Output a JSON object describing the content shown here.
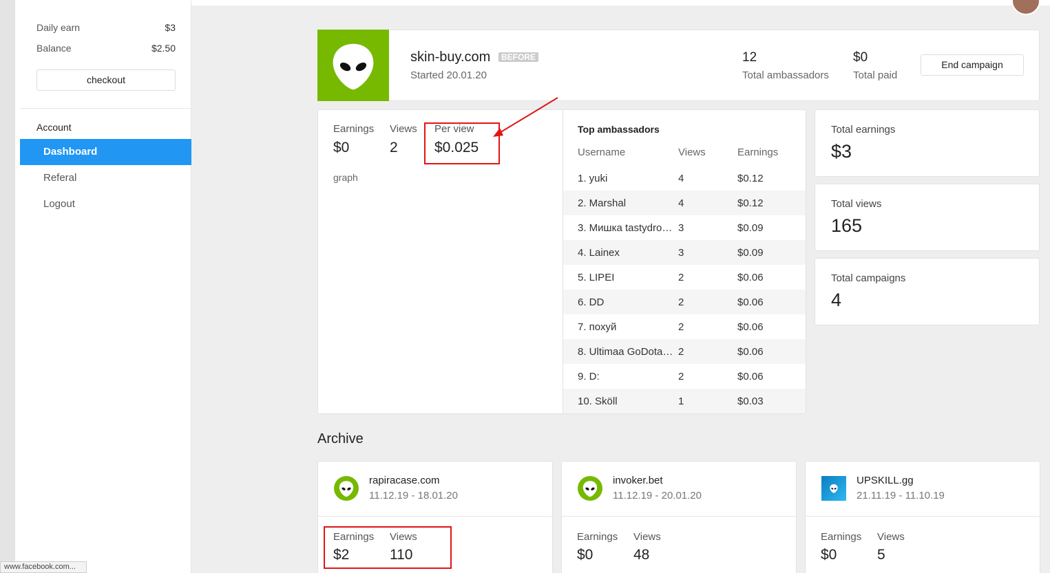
{
  "sidebar": {
    "daily_earn_label": "Daily earn",
    "daily_earn": "$3",
    "balance_label": "Balance",
    "balance": "$2.50",
    "checkout": "checkout",
    "section": "Account",
    "menu": [
      "Dashboard",
      "Referal",
      "Logout"
    ]
  },
  "campaign": {
    "name": "skin-buy.com",
    "badge": "BEFORE",
    "started": "Started 20.01.20",
    "stats": [
      {
        "value": "12",
        "label": "Total ambassadors"
      },
      {
        "value": "$0",
        "label": "Total paid"
      }
    ],
    "end_button": "End campaign"
  },
  "campaign_stats": {
    "items": [
      {
        "label": "Earnings",
        "value": "$0"
      },
      {
        "label": "Views",
        "value": "2"
      },
      {
        "label": "Per view",
        "value": "$0.025"
      }
    ],
    "graph": "graph"
  },
  "top_ambassadors": {
    "title": "Top ambassadors",
    "columns": [
      "Username",
      "Views",
      "Earnings"
    ],
    "rows": [
      [
        "1. yuki",
        "4",
        "$0.12"
      ],
      [
        "2. Marshal",
        "4",
        "$0.12"
      ],
      [
        "3. Мишка tastydro…",
        "3",
        "$0.09"
      ],
      [
        "4. Lainex",
        "3",
        "$0.09"
      ],
      [
        "5. LIPEI",
        "2",
        "$0.06"
      ],
      [
        "6. DD",
        "2",
        "$0.06"
      ],
      [
        "7. похуй",
        "2",
        "$0.06"
      ],
      [
        "8. Ultimaa GoDota…",
        "2",
        "$0.06"
      ],
      [
        "9. D:",
        "2",
        "$0.06"
      ],
      [
        "10. Sköll",
        "1",
        "$0.03"
      ]
    ]
  },
  "totals": [
    {
      "label": "Total earnings",
      "value": "$3"
    },
    {
      "label": "Total views",
      "value": "165"
    },
    {
      "label": "Total campaigns",
      "value": "4"
    }
  ],
  "archive": {
    "title": "Archive",
    "cards": [
      {
        "name": "rapiracase.com",
        "dates": "11.12.19 - 18.01.20",
        "stats": [
          {
            "label": "Earnings",
            "value": "$2"
          },
          {
            "label": "Views",
            "value": "110"
          }
        ]
      },
      {
        "name": "invoker.bet",
        "dates": "11.12.19 - 20.01.20",
        "stats": [
          {
            "label": "Earnings",
            "value": "$0"
          },
          {
            "label": "Views",
            "value": "48"
          }
        ]
      },
      {
        "name": "UPSKILL.gg",
        "dates": "21.11.19 - 11.10.19",
        "stats": [
          {
            "label": "Earnings",
            "value": "$0"
          },
          {
            "label": "Views",
            "value": "5"
          }
        ]
      }
    ]
  },
  "status_bar": "www.facebook.com..."
}
